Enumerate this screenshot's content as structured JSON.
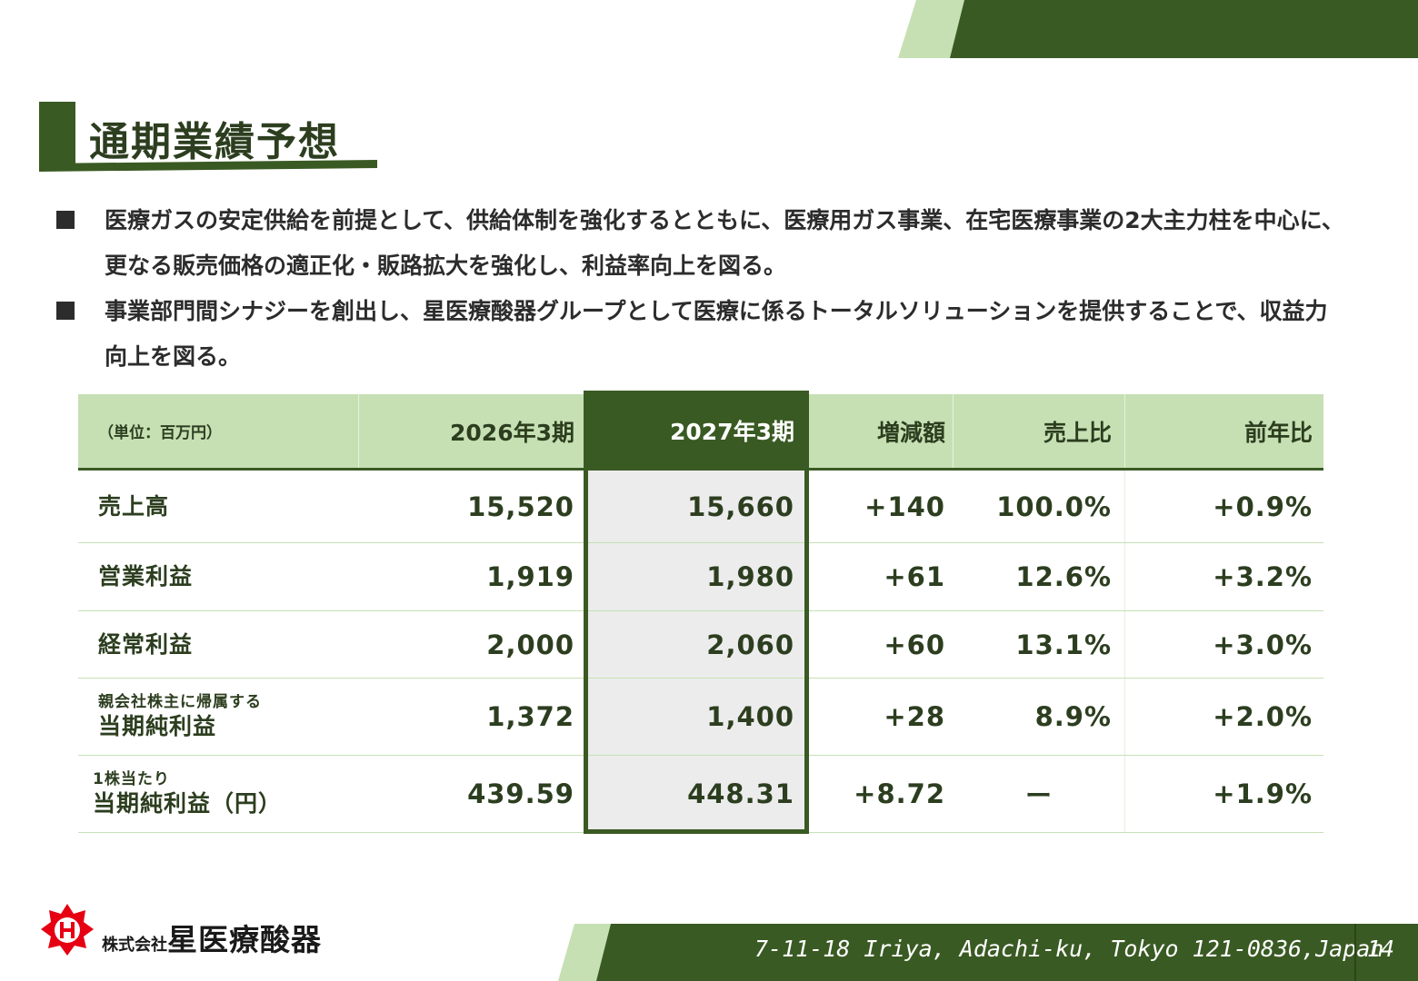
{
  "title": "通期業績予想",
  "bullets": [
    "医療ガスの安定供給を前提として、供給体制を強化するとともに、医療用ガス事業、在宅医療事業の2大主力柱を中心に、更なる販売価格の適正化・販路拡大を強化し、利益率向上を図る。",
    "事業部門間シナジーを創出し、星医療酸器グループとして医療に係るトータルソリューションを提供することで、収益力向上を図る。"
  ],
  "table": {
    "headers": [
      "（単位：百万円）",
      "2026年3期",
      "2027年3期",
      "増減額",
      "売上比",
      "前年比"
    ],
    "rows": [
      {
        "small": "",
        "label": "売上高",
        "fy2026": "15,520",
        "fy2027": "15,660",
        "change": "+140",
        "ratio": "100.0%",
        "yoy": "+0.9%"
      },
      {
        "small": "",
        "label": "営業利益",
        "fy2026": "1,919",
        "fy2027": "1,980",
        "change": "+61",
        "ratio": "12.6%",
        "yoy": "+3.2%"
      },
      {
        "small": "",
        "label": "経常利益",
        "fy2026": "2,000",
        "fy2027": "2,060",
        "change": "+60",
        "ratio": "13.1%",
        "yoy": "+3.0%"
      },
      {
        "small": "親会社株主に帰属する",
        "label": "当期純利益",
        "fy2026": "1,372",
        "fy2027": "1,400",
        "change": "+28",
        "ratio": "8.9%",
        "yoy": "+2.0%"
      },
      {
        "small": "1株当たり",
        "label": "当期純利益（円）",
        "fy2026": "439.59",
        "fy2027": "448.31",
        "change": "+8.72",
        "ratio": "ー",
        "yoy": "+1.9%"
      }
    ]
  },
  "footer": {
    "logo_icon": "h-star-logo-icon",
    "company_prefix": "株式会社",
    "company_name": "星医療酸器",
    "address": "7-11-18 Iriya, Adachi-ku, Tokyo 121-0836,Japan",
    "page": "14"
  },
  "colors": {
    "dark_green": "#3a5a23",
    "light_green": "#c6e0b4",
    "logo_red": "#e60012"
  }
}
